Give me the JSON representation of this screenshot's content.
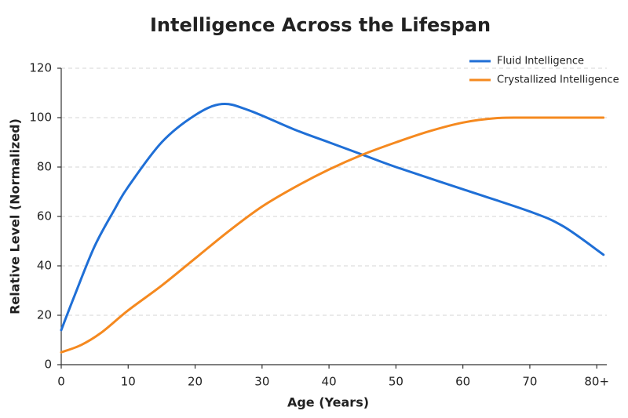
{
  "chart_data": {
    "type": "line",
    "title": "Intelligence Across the Lifespan",
    "x_label": "Age (Years)",
    "y_label": "Relative Level (Normalized)",
    "xlim": [
      0,
      81.5
    ],
    "ylim": [
      0,
      120
    ],
    "xticks": [
      0,
      10,
      20,
      30,
      40,
      50,
      60,
      70,
      {
        "value": 80,
        "label": "80+"
      }
    ],
    "yticks": [
      0,
      20,
      40,
      60,
      80,
      100,
      120
    ],
    "grid": true,
    "legend": "upper right",
    "series": [
      {
        "name": "Fluid Intelligence",
        "color": "#1f6fd6",
        "x": [
          0,
          2,
          5,
          8,
          10,
          15,
          20,
          24,
          28,
          35,
          40,
          45,
          50,
          60,
          70,
          75,
          81
        ],
        "values": [
          14,
          28,
          48,
          63,
          72,
          90,
          101,
          105.5,
          103,
          95,
          90,
          85,
          80,
          71,
          62,
          56,
          44.5
        ]
      },
      {
        "name": "Crystallized Intelligence",
        "color": "#f5891f",
        "x": [
          0,
          3,
          6,
          10,
          15,
          20,
          25,
          30,
          35,
          40,
          45,
          50,
          55,
          60,
          65,
          70,
          81
        ],
        "values": [
          5,
          8,
          13,
          22,
          32,
          43,
          54,
          64,
          72,
          79,
          85,
          90,
          94.5,
          98,
          99.8,
          100,
          100
        ]
      }
    ]
  }
}
